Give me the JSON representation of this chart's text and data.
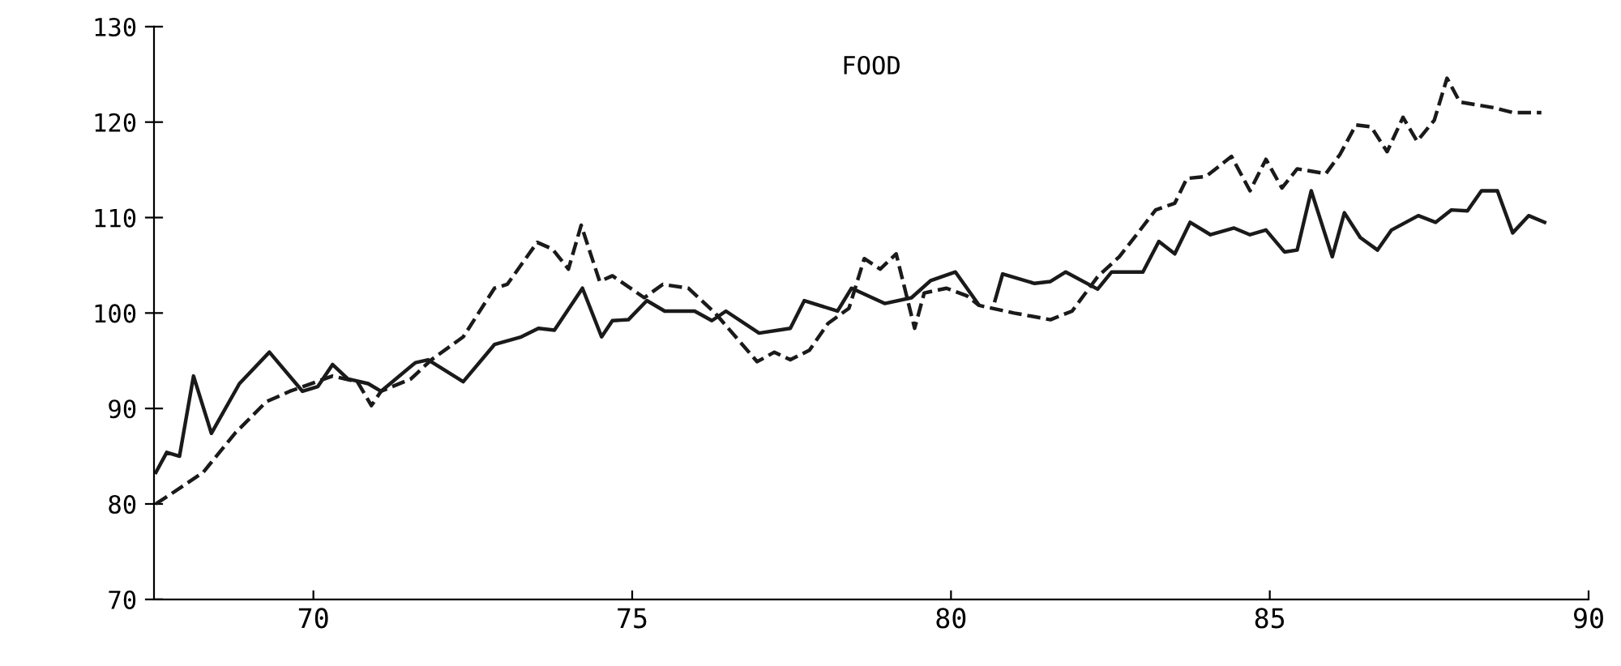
{
  "chart_data": {
    "type": "line",
    "title": "FOOD",
    "xlim": [
      67.5,
      90
    ],
    "xticks": [
      70,
      75,
      80,
      85,
      90
    ],
    "ylim": [
      70,
      130
    ],
    "yticks": [
      70,
      80,
      90,
      100,
      110,
      120,
      130
    ],
    "grid": false,
    "marker": "none",
    "series": [
      {
        "color": "#1a1a1a",
        "line_style": "solid",
        "x": [
          67.53,
          67.7,
          67.9,
          68.12,
          68.4,
          68.84,
          69.31,
          69.83,
          70.07,
          70.3,
          70.54,
          70.86,
          71.06,
          71.6,
          71.8,
          72.35,
          72.84,
          73.26,
          73.53,
          73.78,
          74.22,
          74.52,
          74.69,
          74.94,
          75.23,
          75.51,
          75.98,
          76.25,
          76.47,
          76.99,
          77.48,
          77.7,
          78.22,
          78.44,
          78.96,
          79.38,
          79.68,
          80.07,
          80.42,
          80.55,
          80.69,
          80.81,
          81.31,
          81.56,
          81.8,
          82.3,
          82.52,
          83.01,
          83.26,
          83.51,
          83.75,
          84.07,
          84.44,
          84.69,
          84.94,
          85.23,
          85.43,
          85.65,
          85.98,
          86.17,
          86.42,
          86.69,
          86.91,
          87.33,
          87.6,
          87.85,
          88.1,
          88.32,
          88.57,
          88.81,
          89.06,
          89.31
        ],
        "values": [
          83.3,
          85.4,
          85,
          93.4,
          87.4,
          92.6,
          95.9,
          91.8,
          92.3,
          94.6,
          93.1,
          92.6,
          91.8,
          94.8,
          95.1,
          92.8,
          96.7,
          97.5,
          98.4,
          98.2,
          102.6,
          97.5,
          99.2,
          99.3,
          101.3,
          100.2,
          100.2,
          99.2,
          100.2,
          97.9,
          98.4,
          101.3,
          100.2,
          102.6,
          101,
          101.6,
          103.4,
          104.3,
          101,
          null,
          101.3,
          104.1,
          103.1,
          103.3,
          104.3,
          102.5,
          104.3,
          104.3,
          107.5,
          106.2,
          109.5,
          108.2,
          108.9,
          108.2,
          108.7,
          106.4,
          106.6,
          112.8,
          105.9,
          110.5,
          107.9,
          106.6,
          108.7,
          110.2,
          109.5,
          110.8,
          110.7,
          112.8,
          112.8,
          108.4,
          110.2,
          109.5
        ]
      },
      {
        "color": "#1a1a1a",
        "line_style": "dashed",
        "x": [
          67.53,
          67.78,
          68.27,
          68.77,
          69.26,
          69.63,
          70.3,
          70.69,
          70.91,
          71.06,
          71.53,
          71.85,
          72.35,
          72.84,
          73.04,
          73.51,
          73.75,
          74.0,
          74.2,
          74.49,
          74.69,
          75.19,
          75.48,
          75.88,
          76.3,
          76.96,
          77.23,
          77.48,
          77.78,
          78.07,
          78.4,
          78.64,
          78.89,
          79.14,
          79.43,
          79.58,
          79.93,
          80.25,
          80.44,
          80.99,
          81.56,
          81.9,
          82.3,
          82.64,
          82.91,
          83.21,
          83.51,
          83.7,
          84.0,
          84.4,
          84.69,
          84.94,
          85.19,
          85.43,
          85.88,
          86.1,
          86.35,
          86.59,
          86.84,
          87.09,
          87.31,
          87.58,
          87.78,
          87.98,
          88.52,
          88.81,
          89.26
        ],
        "values": [
          80,
          81.1,
          83.3,
          87.4,
          90.7,
          91.8,
          93.4,
          92.8,
          90.3,
          91.8,
          93.1,
          95.1,
          97.5,
          102.6,
          103,
          107.4,
          106.7,
          104.6,
          109.2,
          103.3,
          103.9,
          101.6,
          103,
          102.6,
          100,
          94.9,
          95.9,
          95.1,
          96.1,
          98.9,
          100.5,
          105.7,
          104.6,
          106.2,
          98.4,
          102.1,
          102.6,
          101.8,
          100.8,
          100,
          99.3,
          100.2,
          103.8,
          105.9,
          108.2,
          110.8,
          111.5,
          114.1,
          114.3,
          116.4,
          112.8,
          116.1,
          113.1,
          115.1,
          114.6,
          116.6,
          119.7,
          119.5,
          116.9,
          120.5,
          118,
          120.2,
          124.6,
          122.1,
          121.5,
          121,
          121
        ]
      }
    ]
  }
}
